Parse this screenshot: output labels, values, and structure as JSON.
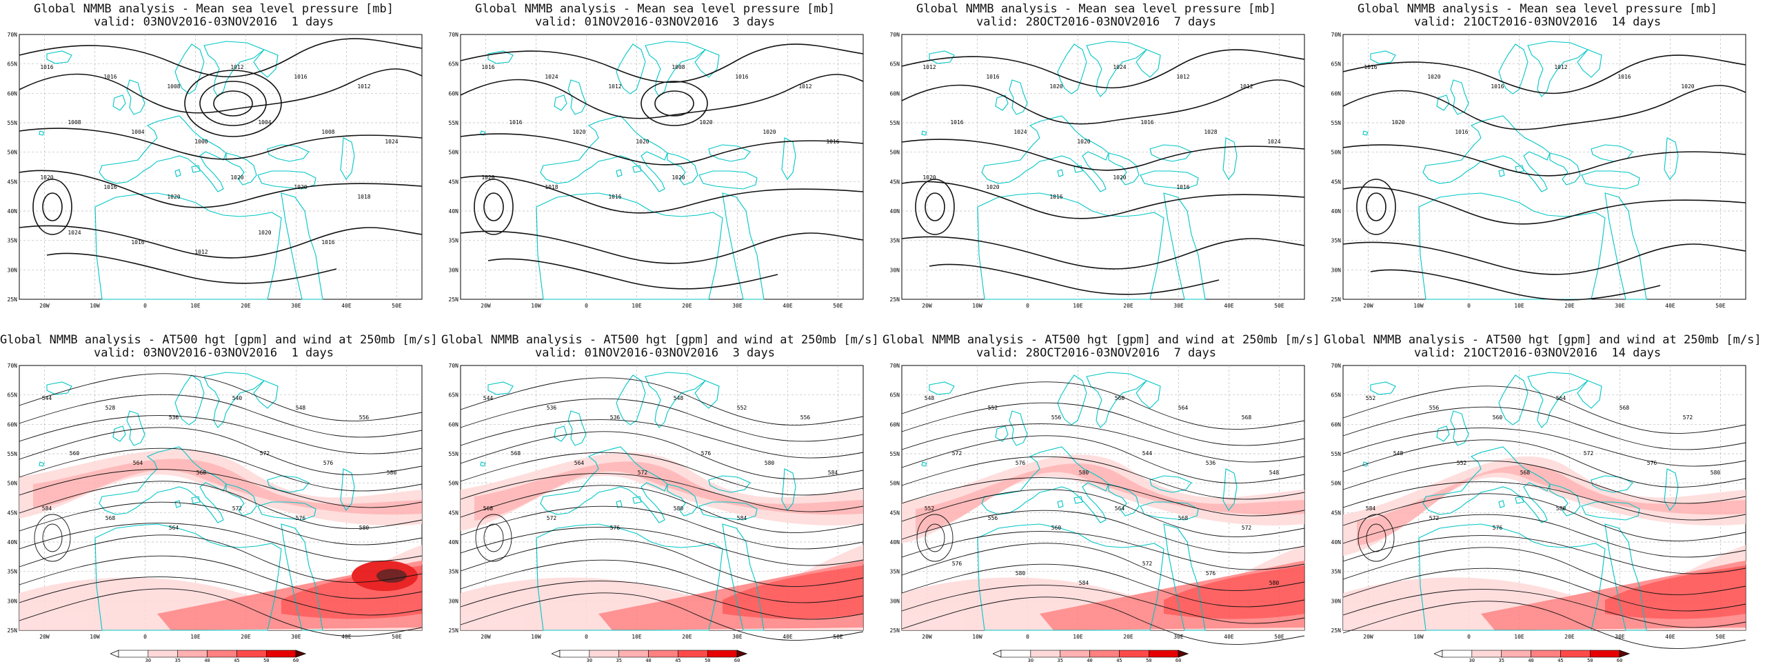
{
  "colors": {
    "coast": "#00c5c5",
    "isobar": "#111111",
    "grid": "#b9b9b9",
    "jet": [
      "#ffd9d9",
      "#ffb0b0",
      "#ff8080",
      "#ff4a4a",
      "#e60000",
      "#5a0000"
    ]
  },
  "axes": {
    "lat_labels": [
      "25N",
      "30N",
      "35N",
      "40N",
      "45N",
      "50N",
      "55N",
      "60N",
      "65N",
      "70N"
    ],
    "lon_labels": [
      "20W",
      "10W",
      "0",
      "10E",
      "20E",
      "30E",
      "40E",
      "50E"
    ]
  },
  "colorbar": {
    "labels": [
      "30",
      "35",
      "40",
      "45",
      "50",
      "60"
    ]
  },
  "panels": [
    {
      "id": "mslp-1d",
      "title": "Global NMMB analysis - Mean sea level pressure [mb]",
      "subtitle": "valid: 03NOV2016-03NOV2016  1 days",
      "type": "mslp",
      "isobar_labels": [
        "1016",
        "1016",
        "1008",
        "1012",
        "1016",
        "1012",
        "1008",
        "1004",
        "1000",
        "1004",
        "1008",
        "1024",
        "1020",
        "1016",
        "1020",
        "1020",
        "1020",
        "1018",
        "1024",
        "1016",
        "1012",
        "1020",
        "1016"
      ]
    },
    {
      "id": "mslp-3d",
      "title": "Global NMMB analysis - Mean sea level pressure [mb]",
      "subtitle": "valid: 01NOV2016-03NOV2016  3 days",
      "type": "mslp",
      "isobar_labels": [
        "1016",
        "1024",
        "1012",
        "1008",
        "1016",
        "1012",
        "1016",
        "1020",
        "1020",
        "1020",
        "1020",
        "1016",
        "1020",
        "1018",
        "1016",
        "1020"
      ]
    },
    {
      "id": "mslp-7d",
      "title": "Global NMMB analysis - Mean sea level pressure [mb]",
      "subtitle": "valid: 28OCT2016-03NOV2016  7 days",
      "type": "mslp",
      "isobar_labels": [
        "1012",
        "1016",
        "1020",
        "1024",
        "1012",
        "1012",
        "1016",
        "1024",
        "1020",
        "1016",
        "1028",
        "1024",
        "1020",
        "1020",
        "1016",
        "1020",
        "1016"
      ]
    },
    {
      "id": "mslp-14d",
      "title": "Global NMMB analysis - Mean sea level pressure [mb]",
      "subtitle": "valid: 21OCT2016-03NOV2016  14 days",
      "type": "mslp",
      "isobar_labels": [
        "1016",
        "1020",
        "1016",
        "1012",
        "1016",
        "1020",
        "1020",
        "1016"
      ]
    },
    {
      "id": "z500-1d",
      "title": "Global NMMB analysis - AT500 hgt [gpm] and wind at 250mb [m/s]",
      "subtitle": "valid: 03NOV2016-03NOV2016  1 days",
      "type": "z500",
      "isobar_labels": [
        "544",
        "528",
        "536",
        "540",
        "548",
        "556",
        "560",
        "564",
        "568",
        "572",
        "576",
        "580",
        "584",
        "568",
        "564",
        "572",
        "576",
        "580"
      ]
    },
    {
      "id": "z500-3d",
      "title": "Global NMMB analysis - AT500 hgt [gpm] and wind at 250mb [m/s]",
      "subtitle": "valid: 01NOV2016-03NOV2016  3 days",
      "type": "z500",
      "isobar_labels": [
        "544",
        "536",
        "536",
        "548",
        "552",
        "556",
        "568",
        "564",
        "572",
        "576",
        "580",
        "584",
        "568",
        "572",
        "576",
        "580",
        "584"
      ]
    },
    {
      "id": "z500-7d",
      "title": "Global NMMB analysis - AT500 hgt [gpm] and wind at 250mb [m/s]",
      "subtitle": "valid: 28OCT2016-03NOV2016  7 days",
      "type": "z500",
      "isobar_labels": [
        "548",
        "552",
        "556",
        "560",
        "564",
        "568",
        "572",
        "576",
        "580",
        "544",
        "536",
        "548",
        "552",
        "556",
        "560",
        "564",
        "568",
        "572",
        "576",
        "580",
        "584",
        "572",
        "576",
        "580"
      ]
    },
    {
      "id": "z500-14d",
      "title": "Global NMMB analysis - AT500 hgt [gpm] and wind at 250mb [m/s]",
      "subtitle": "valid: 21OCT2016-03NOV2016  14 days",
      "type": "z500",
      "isobar_labels": [
        "552",
        "556",
        "560",
        "564",
        "568",
        "572",
        "548",
        "552",
        "568",
        "572",
        "576",
        "580",
        "584",
        "572",
        "576",
        "580"
      ]
    }
  ]
}
